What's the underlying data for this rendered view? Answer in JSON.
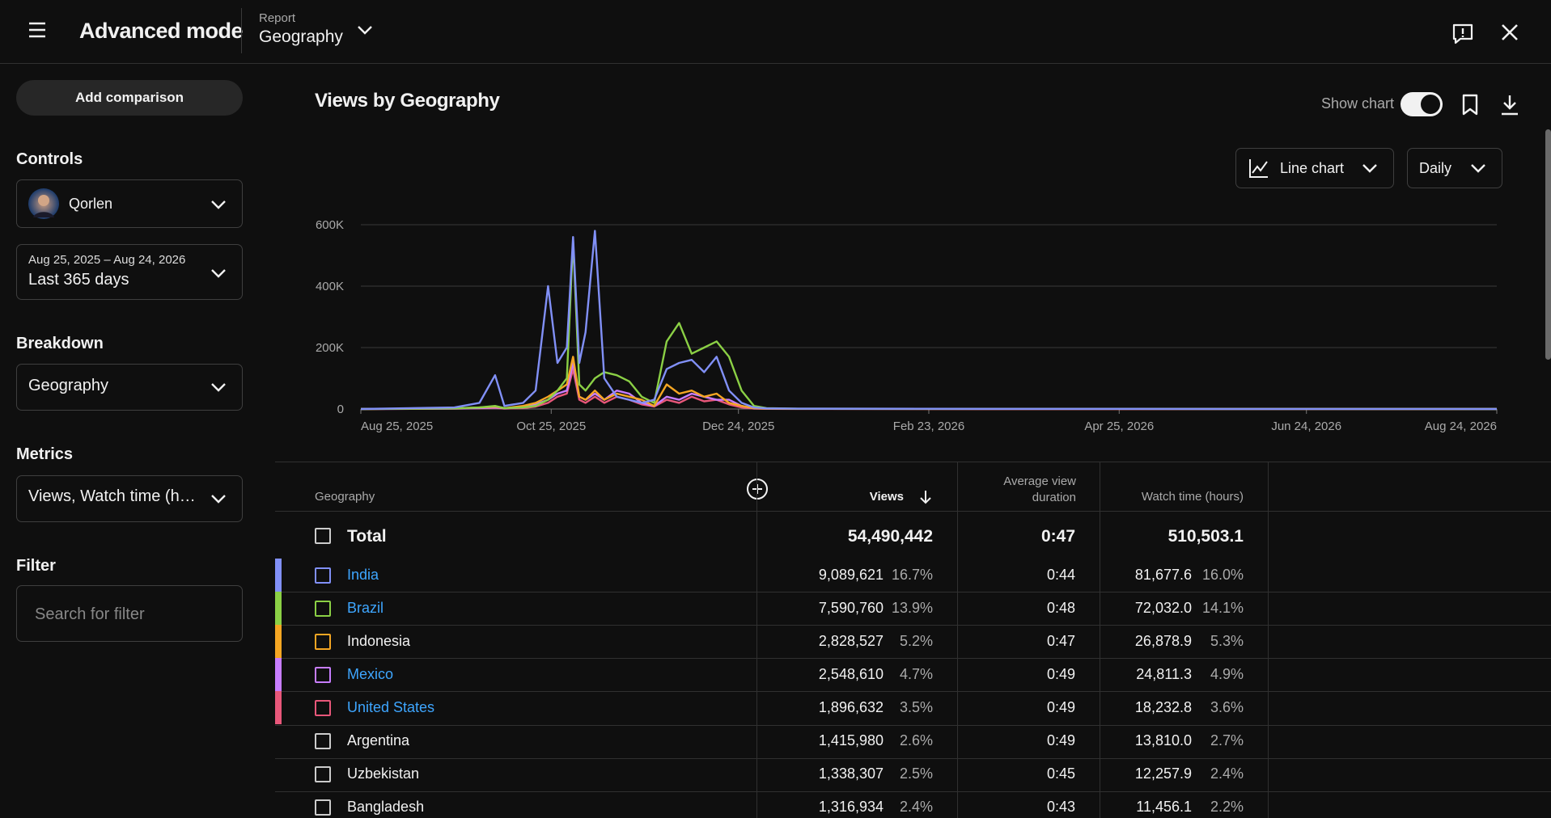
{
  "header": {
    "title": "Advanced mode",
    "report_label": "Report",
    "report": "Geography"
  },
  "sidebar": {
    "add_comparison": "Add comparison",
    "controls": "Controls",
    "channel": "Qorlen",
    "date_range": "Aug 25, 2025 – Aug 24, 2026",
    "period": "Last 365 days",
    "breakdown_label": "Breakdown",
    "breakdown": "Geography",
    "metrics_label": "Metrics",
    "metrics": "Views, Watch time (h…",
    "filter_label": "Filter",
    "filter_placeholder": "Search for filter"
  },
  "toolbar": {
    "show_chart": "Show chart",
    "chart_type": "Line chart",
    "interval": "Daily"
  },
  "chart_data": {
    "type": "line",
    "title": "Views by Geography",
    "x": [
      "2025-08-25",
      "2025-09-24",
      "2025-10-02",
      "2025-10-07",
      "2025-10-10",
      "2025-10-16",
      "2025-10-20",
      "2025-10-24",
      "2025-10-27",
      "2025-10-30",
      "2025-11-01",
      "2025-11-03",
      "2025-11-05",
      "2025-11-08",
      "2025-11-11",
      "2025-11-15",
      "2025-11-19",
      "2025-11-23",
      "2025-11-27",
      "2025-12-01",
      "2025-12-05",
      "2025-12-09",
      "2025-12-13",
      "2025-12-17",
      "2025-12-21",
      "2025-12-25",
      "2025-12-29",
      "2026-01-02",
      "2026-01-12",
      "2026-03-13",
      "2026-08-24"
    ],
    "xlim": [
      "2025-08-25",
      "2026-08-24"
    ],
    "xticks": [
      {
        "value": "2025-08-25",
        "label": "Aug 25, 2025"
      },
      {
        "value": "2025-10-25",
        "label": "Oct 25, 2025"
      },
      {
        "value": "2025-12-24",
        "label": "Dec 24, 2025"
      },
      {
        "value": "2026-02-23",
        "label": "Feb 23, 2026"
      },
      {
        "value": "2026-04-25",
        "label": "Apr 25, 2026"
      },
      {
        "value": "2026-06-24",
        "label": "Jun 24, 2026"
      },
      {
        "value": "2026-08-24",
        "label": "Aug 24, 2026"
      }
    ],
    "ylim": [
      0,
      600000
    ],
    "yticks": [
      0,
      {
        "value": 200000,
        "label": "200K"
      },
      {
        "value": 400000,
        "label": "400K"
      },
      {
        "value": 600000,
        "label": "600K"
      }
    ],
    "grid": true,
    "series": [
      {
        "color": "#8190f7",
        "values": [
          0,
          5000,
          20000,
          110000,
          10000,
          20000,
          60000,
          400000,
          150000,
          200000,
          560000,
          150000,
          250000,
          580000,
          100000,
          40000,
          30000,
          20000,
          30000,
          130000,
          150000,
          160000,
          120000,
          170000,
          60000,
          20000,
          5000,
          2000,
          1000,
          500,
          0
        ]
      },
      {
        "color": "#8bd045",
        "values": [
          0,
          2000,
          5000,
          10000,
          3000,
          5000,
          10000,
          30000,
          60000,
          100000,
          550000,
          80000,
          60000,
          100000,
          120000,
          110000,
          90000,
          40000,
          20000,
          220000,
          280000,
          180000,
          200000,
          220000,
          170000,
          60000,
          10000,
          3000,
          1000,
          500,
          0
        ]
      },
      {
        "color": "#f5a623",
        "values": [
          0,
          2000,
          5000,
          8000,
          3000,
          10000,
          20000,
          40000,
          60000,
          80000,
          170000,
          40000,
          30000,
          60000,
          30000,
          50000,
          40000,
          30000,
          10000,
          80000,
          50000,
          60000,
          40000,
          50000,
          20000,
          10000,
          3000,
          1000,
          500,
          300,
          0
        ]
      },
      {
        "color": "#c77dff",
        "values": [
          0,
          1000,
          3000,
          5000,
          2000,
          5000,
          15000,
          30000,
          50000,
          60000,
          150000,
          40000,
          30000,
          50000,
          30000,
          60000,
          50000,
          20000,
          10000,
          40000,
          30000,
          50000,
          40000,
          30000,
          30000,
          10000,
          2000,
          1000,
          500,
          200,
          0
        ]
      },
      {
        "color": "#e8577a",
        "values": [
          0,
          1000,
          2000,
          4000,
          1000,
          3000,
          8000,
          20000,
          40000,
          50000,
          130000,
          30000,
          20000,
          40000,
          20000,
          40000,
          30000,
          15000,
          8000,
          30000,
          20000,
          40000,
          25000,
          30000,
          15000,
          5000,
          1000,
          500,
          300,
          100,
          0
        ]
      }
    ]
  },
  "table": {
    "columns": [
      "Geography",
      "Views",
      "Average view duration",
      "Watch time (hours)"
    ],
    "total": {
      "name": "Total",
      "views": "54,490,442",
      "avg_duration": "0:47",
      "watch_time": "510,503.1"
    },
    "rows": [
      {
        "name": "India",
        "link": true,
        "views": "9,089,621",
        "views_pct": "16.7%",
        "avg_duration": "0:44",
        "watch_time": "81,677.6",
        "watch_pct": "16.0%"
      },
      {
        "name": "Brazil",
        "link": true,
        "views": "7,590,760",
        "views_pct": "13.9%",
        "avg_duration": "0:48",
        "watch_time": "72,032.0",
        "watch_pct": "14.1%"
      },
      {
        "name": "Indonesia",
        "link": false,
        "views": "2,828,527",
        "views_pct": "5.2%",
        "avg_duration": "0:47",
        "watch_time": "26,878.9",
        "watch_pct": "5.3%"
      },
      {
        "name": "Mexico",
        "link": true,
        "views": "2,548,610",
        "views_pct": "4.7%",
        "avg_duration": "0:49",
        "watch_time": "24,811.3",
        "watch_pct": "4.9%"
      },
      {
        "name": "United States",
        "link": true,
        "views": "1,896,632",
        "views_pct": "3.5%",
        "avg_duration": "0:49",
        "watch_time": "18,232.8",
        "watch_pct": "3.6%"
      },
      {
        "name": "Argentina",
        "link": false,
        "views": "1,415,980",
        "views_pct": "2.6%",
        "avg_duration": "0:49",
        "watch_time": "13,810.0",
        "watch_pct": "2.7%"
      },
      {
        "name": "Uzbekistan",
        "link": false,
        "views": "1,338,307",
        "views_pct": "2.5%",
        "avg_duration": "0:45",
        "watch_time": "12,257.9",
        "watch_pct": "2.4%"
      },
      {
        "name": "Bangladesh",
        "link": false,
        "views": "1,316,934",
        "views_pct": "2.4%",
        "avg_duration": "0:43",
        "watch_time": "11,456.1",
        "watch_pct": "2.2%"
      }
    ]
  }
}
